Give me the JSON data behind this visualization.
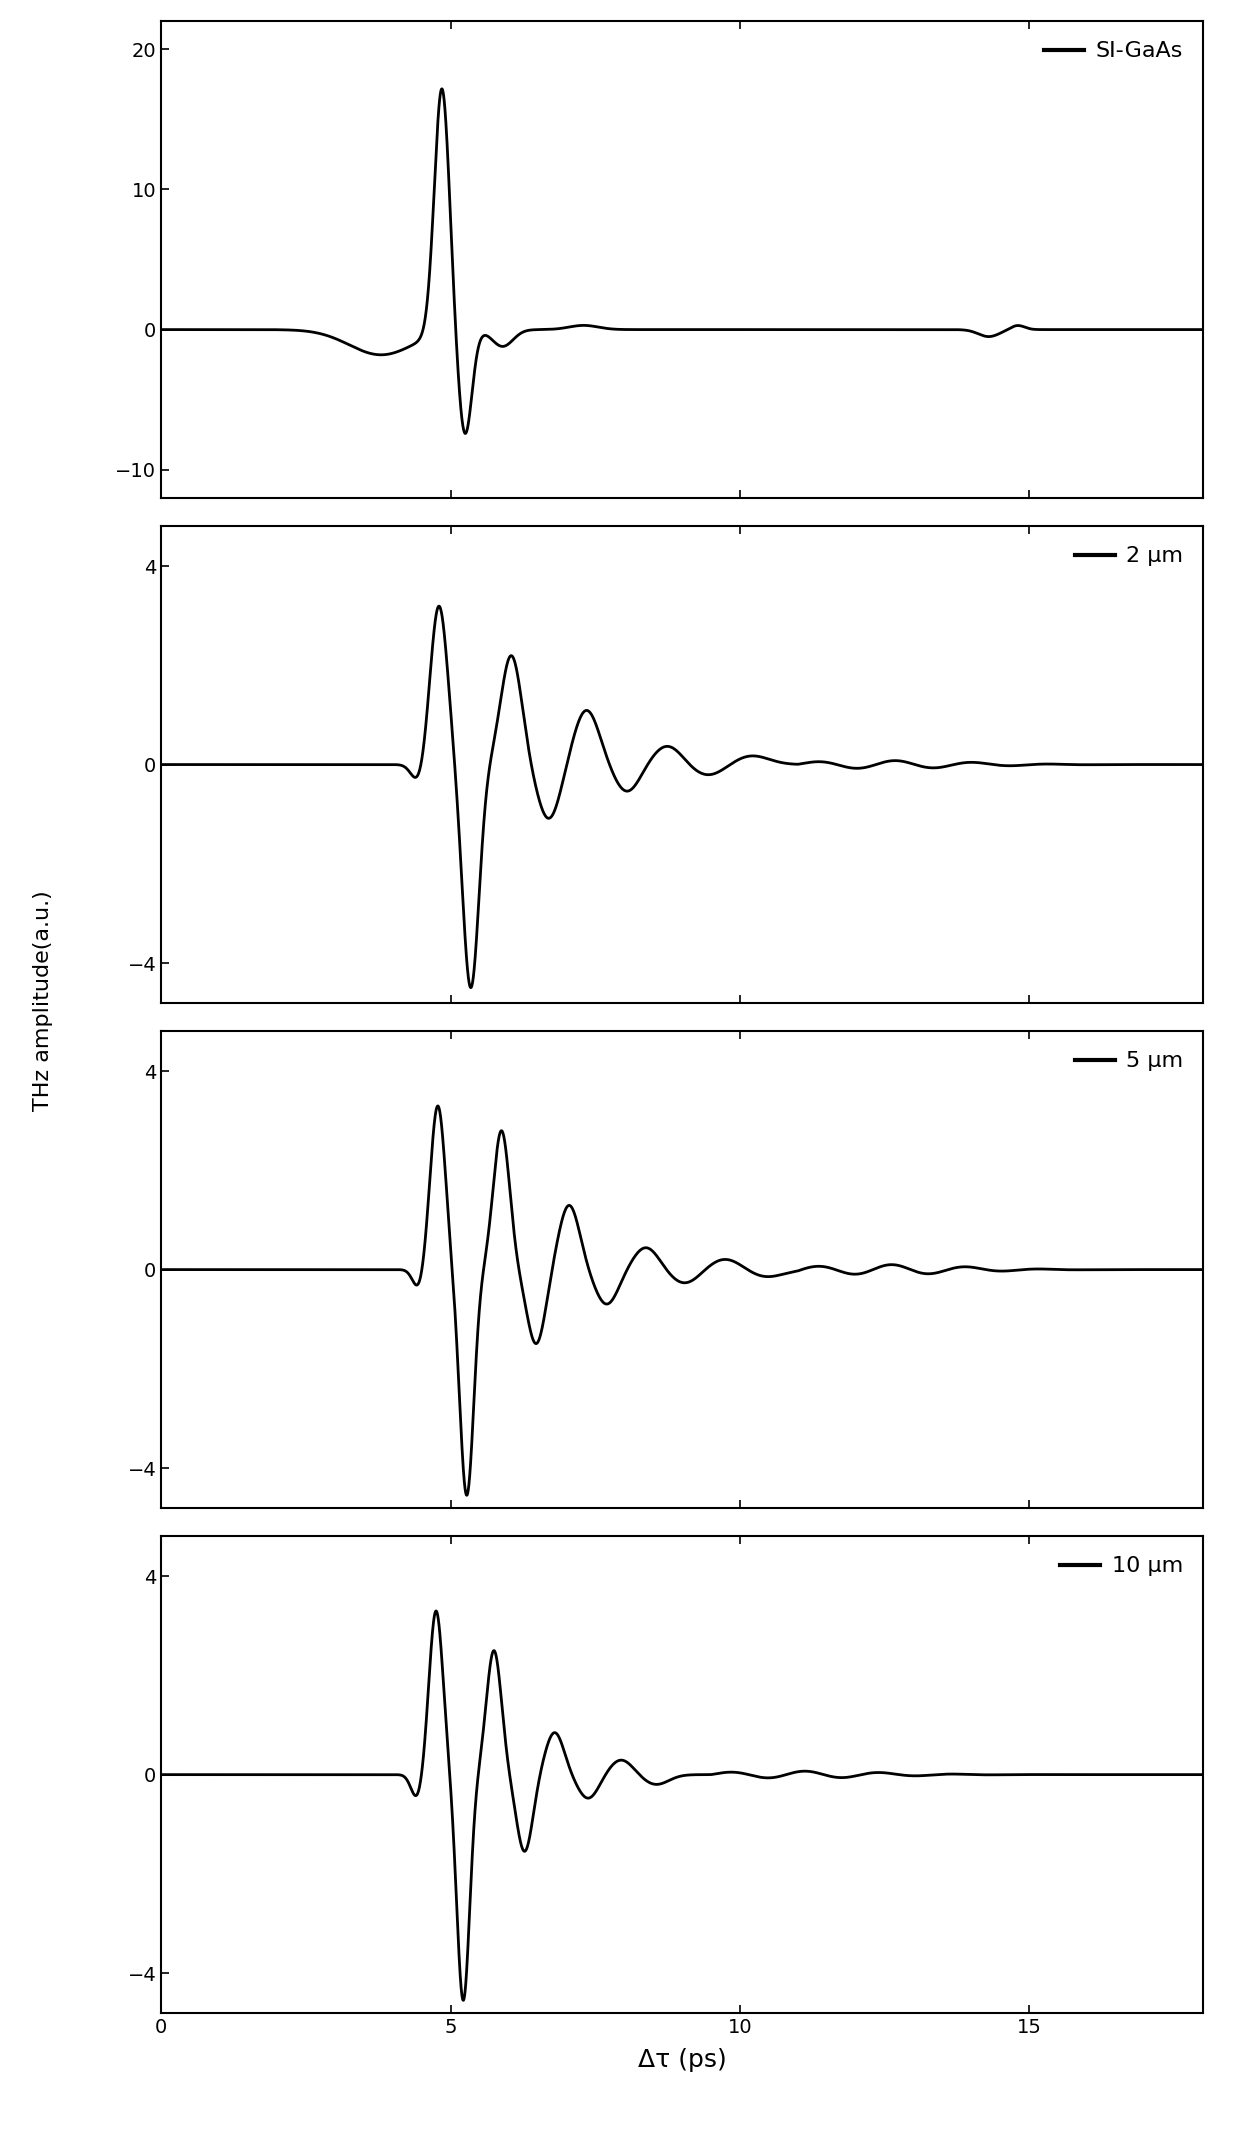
{
  "xlabel": "Δτ (ps)",
  "ylabel": "THz amplitude(a.u.)",
  "xlim": [
    0,
    18
  ],
  "xticks": [
    0,
    5,
    10,
    15
  ],
  "panels": [
    {
      "label": "SI-GaAs",
      "ylim": [
        -12,
        22
      ],
      "yticks": [
        -10,
        0,
        10,
        20
      ]
    },
    {
      "label": "2 μm",
      "ylim": [
        -4.8,
        4.8
      ],
      "yticks": [
        -4,
        0,
        4
      ]
    },
    {
      "label": "5 μm",
      "ylim": [
        -4.8,
        4.8
      ],
      "yticks": [
        -4,
        0,
        4
      ]
    },
    {
      "label": "10 μm",
      "ylim": [
        -4.8,
        4.8
      ],
      "yticks": [
        -4,
        0,
        4
      ]
    }
  ],
  "line_color": "#000000",
  "line_width": 2.0,
  "background_color": "#ffffff",
  "legend_fontsize": 16,
  "tick_fontsize": 14,
  "label_fontsize": 16
}
